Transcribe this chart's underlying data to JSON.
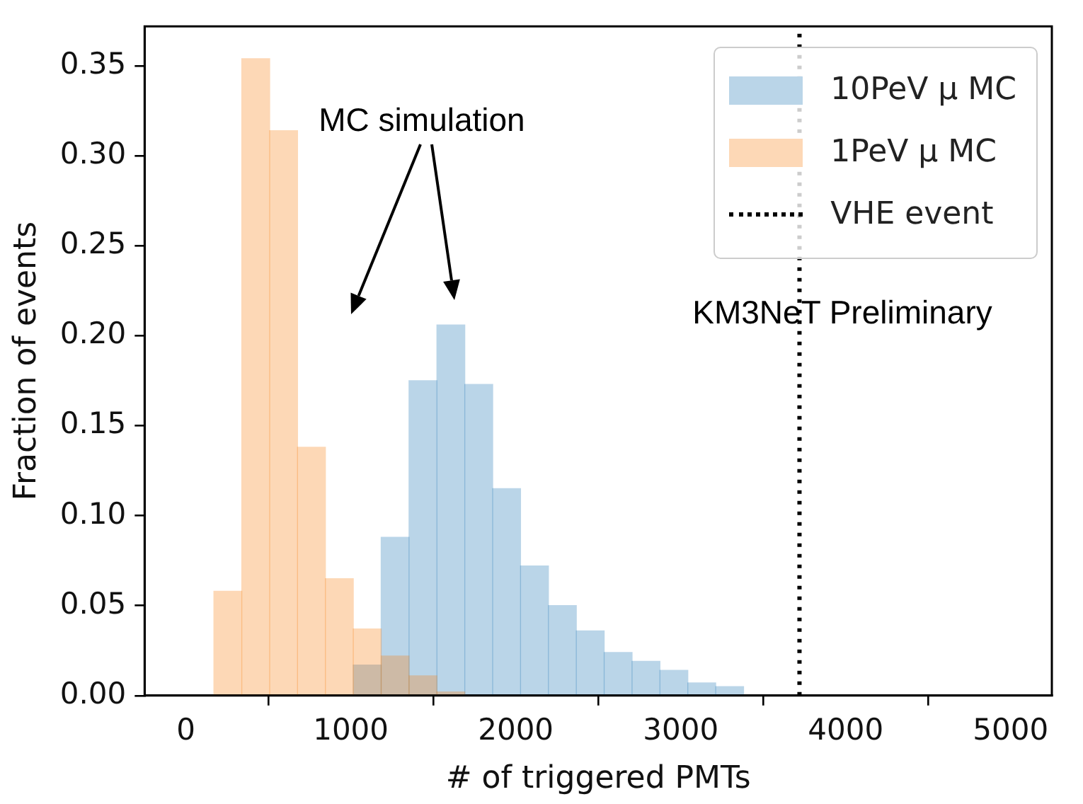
{
  "chart_data": {
    "type": "histogram",
    "xlabel": "# of triggered PMTs",
    "ylabel": "Fraction of events",
    "bins": [
      170,
      339,
      508,
      677,
      846,
      1015,
      1184,
      1353,
      1522,
      1691,
      1860,
      2029,
      2198,
      2367,
      2536,
      2705,
      2874,
      3043,
      3212,
      3381
    ],
    "series": [
      {
        "name": "10PeV μ MC",
        "color": "#bad5e8",
        "values": [
          null,
          null,
          null,
          null,
          null,
          0.017,
          0.088,
          0.175,
          0.206,
          0.173,
          0.115,
          0.072,
          0.05,
          0.036,
          0.024,
          0.019,
          0.014,
          0.007,
          0.005
        ]
      },
      {
        "name": "1PeV μ MC",
        "color": "#fdd8b6",
        "values": [
          0.058,
          0.354,
          0.314,
          0.138,
          0.065,
          0.037,
          0.022,
          0.011,
          0.002,
          null,
          null,
          null,
          null,
          null,
          null,
          null,
          null,
          null,
          null
        ]
      }
    ],
    "ref_lines": [
      {
        "axis": "x",
        "value": 3720,
        "label": "VHE event",
        "color": "#000000",
        "line_style": "dotted"
      }
    ],
    "annotations": [
      "MC simulation",
      "KM3NeT Preliminary"
    ],
    "xlim": [
      -250,
      5250
    ],
    "xticks": [
      0,
      1000,
      2000,
      3000,
      4000,
      5000
    ],
    "ylim": [
      0,
      0.372
    ],
    "yticks": [
      {
        "value": 0,
        "label": "0.00"
      },
      {
        "value": 0.05,
        "label": "0.05"
      },
      {
        "value": 0.1,
        "label": "0.10"
      },
      {
        "value": 0.15,
        "label": "0.15"
      },
      {
        "value": 0.2,
        "label": "0.20"
      },
      {
        "value": 0.25,
        "label": "0.25"
      },
      {
        "value": 0.3,
        "label": "0.30"
      },
      {
        "value": 0.35,
        "label": "0.35"
      }
    ],
    "grid": false,
    "legend": "top right"
  }
}
